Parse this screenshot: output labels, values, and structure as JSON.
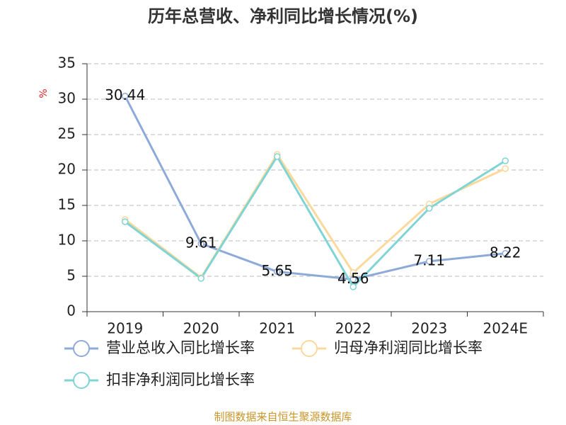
{
  "chart_data": {
    "type": "line",
    "title": "历年总营收、净利同比增长情况(%)",
    "y_label": "%",
    "source": "制图数据来自恒生聚源数据库",
    "categories": [
      "2019",
      "2020",
      "2021",
      "2022",
      "2023",
      "2024E"
    ],
    "series": [
      {
        "name": "营业总收入同比增长率",
        "color": "#8eaad9",
        "values": [
          30.44,
          9.61,
          5.65,
          4.56,
          7.11,
          8.22
        ],
        "labels": true
      },
      {
        "name": "归母净利润同比增长率",
        "color": "#fbd89b",
        "values": [
          13.0,
          4.8,
          22.2,
          5.5,
          15.2,
          20.2
        ]
      },
      {
        "name": "扣非净利润同比增长率",
        "color": "#80d4d4",
        "values": [
          12.7,
          4.7,
          21.9,
          3.5,
          14.6,
          21.3
        ]
      }
    ],
    "ylim": [
      0,
      35
    ],
    "yticks": [
      0,
      5,
      10,
      15,
      20,
      25,
      30,
      35
    ],
    "grid": true
  }
}
